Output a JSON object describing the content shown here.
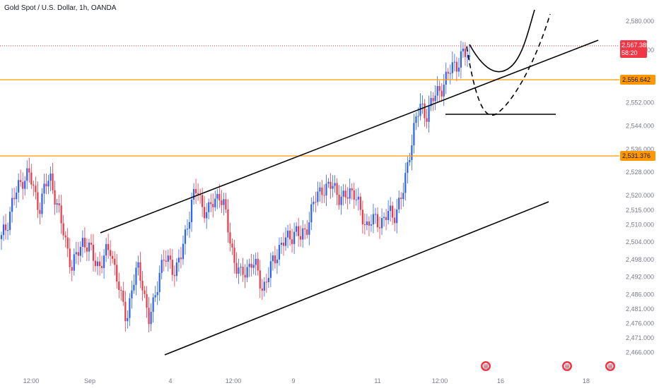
{
  "header": {
    "symbol_title": "Gold Spot / U.S. Dollar, 1h, OANDA"
  },
  "colors": {
    "up": "#2962ff",
    "down": "#f23645",
    "level_line": "#ff9800",
    "current_price_line": "#f23645",
    "price_badge_bg": "#f23645",
    "level_badge_bg": "#ff9800",
    "drawing": "#000000",
    "axis_text": "#787b86",
    "event_icon": "#f23645"
  },
  "price_axis": {
    "ticks": [
      "2,580.000",
      "2,570.000",
      "2,560.000",
      "2,552.000",
      "2,544.000",
      "2,536.000",
      "2,528.000",
      "2,520.000",
      "2,515.000",
      "2,510.000",
      "2,504.000",
      "2,498.000",
      "2,492.000",
      "2,486.000",
      "2,481.000",
      "2,476.000",
      "2,471.000",
      "2,466.000"
    ],
    "ymin": 2463.5,
    "ymax": 2584.6
  },
  "time_axis": {
    "ticks": [
      "12:00",
      "Sep",
      "4",
      "12:00",
      "9",
      "11",
      "12:00",
      "16",
      "18"
    ]
  },
  "badges": {
    "current_price": "2,567.385",
    "countdown": "58:20",
    "level_upper": "2,556.642",
    "level_lower": "2,531.376"
  },
  "event_icons": [
    "economic-event-icon",
    "economic-event-icon",
    "economic-event-icon"
  ],
  "chart_data": {
    "type": "candlestick",
    "title": "Gold Spot / U.S. Dollar, 1h, OANDA",
    "current_price": 2567.385,
    "horizontal_levels": [
      2556.642,
      2531.376
    ],
    "series_close_approx": [
      2505,
      2510,
      2518,
      2522,
      2526,
      2528,
      2521,
      2516,
      2523,
      2526,
      2519,
      2510,
      2503,
      2495,
      2500,
      2505,
      2502,
      2498,
      2496,
      2499,
      2502,
      2494,
      2484,
      2478,
      2488,
      2495,
      2490,
      2476,
      2483,
      2494,
      2498,
      2497,
      2494,
      2499,
      2509,
      2518,
      2522,
      2516,
      2514,
      2518,
      2521,
      2515,
      2505,
      2496,
      2492,
      2495,
      2497,
      2494,
      2488,
      2492,
      2498,
      2502,
      2504,
      2506,
      2508,
      2505,
      2509,
      2515,
      2520,
      2523,
      2522,
      2524,
      2520,
      2518,
      2522,
      2521,
      2513,
      2510,
      2512,
      2510,
      2512,
      2514,
      2512,
      2518,
      2522,
      2535,
      2546,
      2550,
      2548,
      2552,
      2555,
      2558,
      2561,
      2565,
      2566,
      2569,
      2567
    ]
  }
}
